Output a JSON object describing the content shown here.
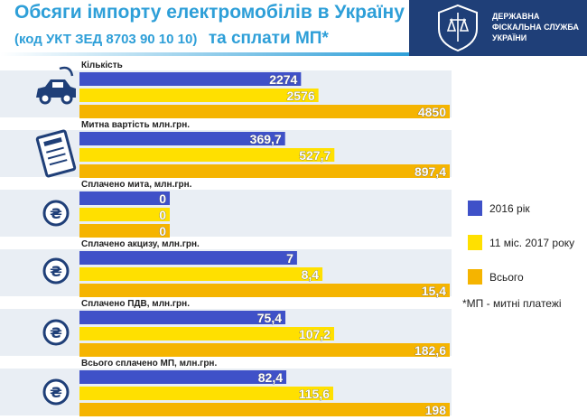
{
  "header": {
    "title_line1": "Обсяги імпорту  електромобілів в Україну",
    "title_line2_code": "(код УКТ ЗЕД 8703 90 10 10)",
    "title_line2_rest": "та сплати МП*"
  },
  "logo": {
    "line1": "ДЕРЖАВНА",
    "line2": "ФІСКАЛЬНА СЛУЖБА",
    "line3": "УКРАЇНИ"
  },
  "footnote": "*МП - митні платежі",
  "colors": {
    "s2016": "#3f51c8",
    "s2017": "#ffe000",
    "total": "#f5b400",
    "icon": "#1f3f78",
    "bg_bar": "#e9eef4",
    "header_blue": "#2e9fd8"
  },
  "chart_data": {
    "type": "bar",
    "orientation": "horizontal",
    "legend_position": "right",
    "series": [
      {
        "name": "2016 рік",
        "color": "#3f51c8"
      },
      {
        "name": "11 міс. 2017 року",
        "color": "#ffe000"
      },
      {
        "name": "Всього",
        "color": "#f5b400"
      }
    ],
    "groups": [
      {
        "label": "Кількість",
        "icon": "car-icon",
        "values": [
          2274,
          2576,
          4850
        ],
        "labels": [
          "2274",
          "2576",
          "4850"
        ],
        "max": 4850
      },
      {
        "label": "Митна вартість млн.грн.",
        "icon": "document-icon",
        "values": [
          369.7,
          527.7,
          897.4
        ],
        "labels": [
          "369,7",
          "527,7",
          "897,4"
        ],
        "max": 897.4
      },
      {
        "label": "Сплачено мита, млн.грн.",
        "icon": "hryvnia-icon",
        "values": [
          0,
          0,
          0
        ],
        "labels": [
          "0",
          "0",
          "0"
        ],
        "max": 0
      },
      {
        "label": "Сплачено акцизу, млн.грн.",
        "icon": "hryvnia-icon",
        "values": [
          7,
          8.4,
          15.4
        ],
        "labels": [
          "7",
          "8,4",
          "15,4"
        ],
        "max": 15.4
      },
      {
        "label": "Сплачено ПДВ, млн.грн.",
        "icon": "hryvnia-icon",
        "values": [
          75.4,
          107.2,
          182.6
        ],
        "labels": [
          "75,4",
          "107,2",
          "182,6"
        ],
        "max": 182.6
      },
      {
        "label": "Всього сплачено МП, млн.грн.",
        "icon": "hryvnia-icon",
        "values": [
          82.4,
          115.6,
          198
        ],
        "labels": [
          "82,4",
          "115,6",
          "198"
        ],
        "max": 198
      }
    ]
  }
}
